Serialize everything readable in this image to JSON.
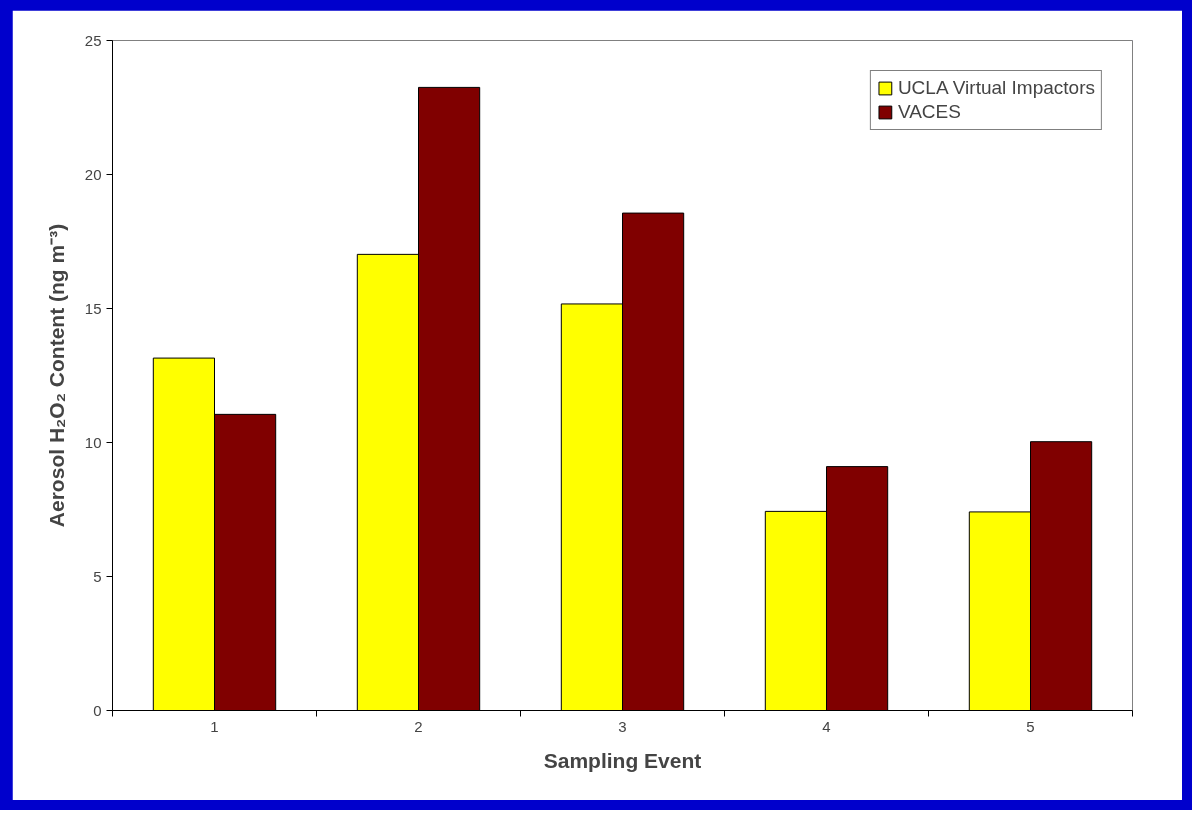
{
  "chart_data": {
    "type": "bar",
    "xlabel": "Sampling Event",
    "ylabel": "Aerosol H₂O₂ Content (ng m⁻³)",
    "categories": [
      "1",
      "2",
      "3",
      "4",
      "5"
    ],
    "series": [
      {
        "name": "UCLA Virtual Impactors",
        "color": "#ffff00",
        "values": [
          13.15,
          17.02,
          15.17,
          7.43,
          7.41
        ]
      },
      {
        "name": "VACES",
        "color": "#800000",
        "values": [
          11.05,
          23.25,
          18.56,
          9.1,
          10.03
        ]
      }
    ],
    "ylim": [
      0,
      25
    ],
    "yticks": [
      0,
      5,
      10,
      15,
      20,
      25
    ],
    "grid": false,
    "legend": "top right"
  }
}
